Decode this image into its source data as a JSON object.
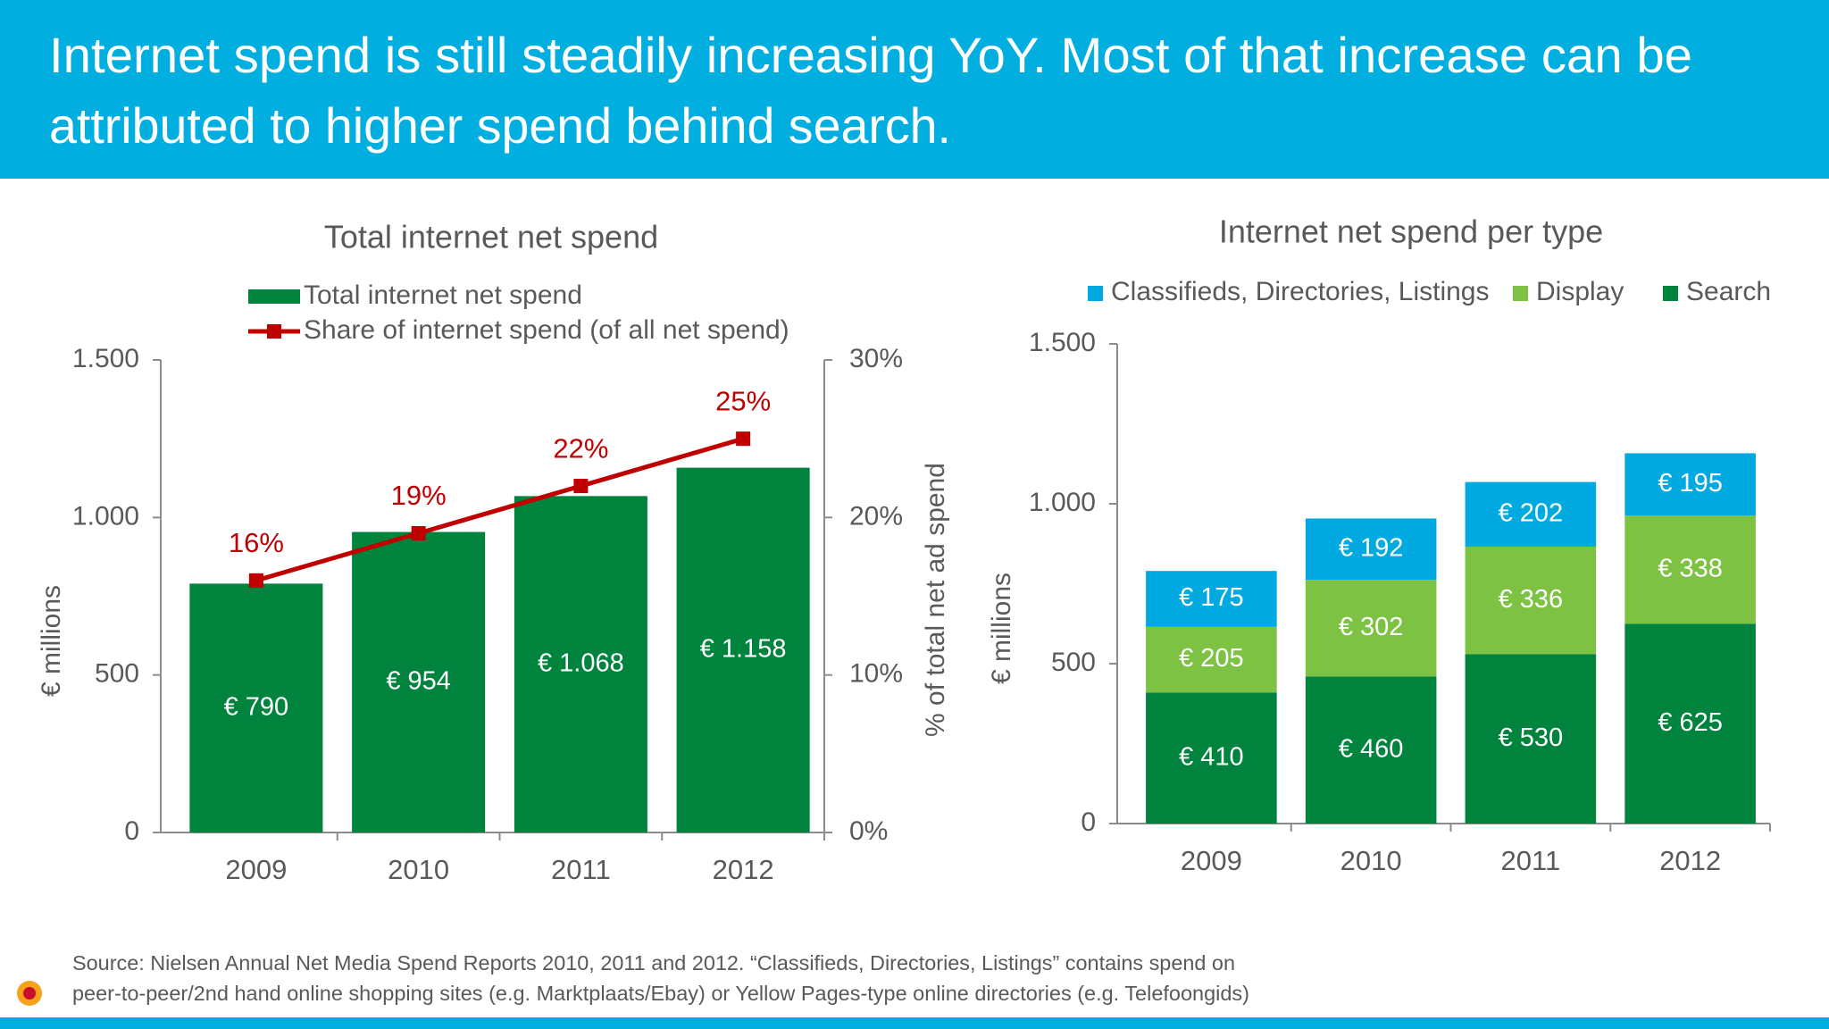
{
  "header": {
    "title": [
      "Internet spend is still steadily increasing YoY. Most of that increase can be",
      "attributed to higher spend behind search."
    ]
  },
  "chart_data": [
    {
      "type": "bar",
      "title": "Total internet net spend",
      "categories": [
        "2009",
        "2010",
        "2011",
        "2012"
      ],
      "series": [
        {
          "name": "Total internet net spend",
          "type": "bar",
          "color": "#00843d",
          "values": [
            790,
            954,
            1068,
            1158
          ],
          "value_labels": [
            "€ 790",
            "€ 954",
            "€ 1.068",
            "€ 1.158"
          ]
        },
        {
          "name": "Share of internet spend (of all net spend)",
          "type": "line",
          "axis": "y2",
          "color": "#c00000",
          "values": [
            16,
            19,
            22,
            25
          ],
          "value_labels": [
            "16%",
            "19%",
            "22%",
            "25%"
          ]
        }
      ],
      "ylabel": "€ millions",
      "y2label": "% of total net ad spend",
      "ylim": [
        0,
        1500
      ],
      "yticks": [
        0,
        500,
        {
          "value": 1000,
          "label": "1.000"
        },
        {
          "value": 1500,
          "label": "1.500"
        }
      ],
      "y2lim": [
        0,
        30
      ],
      "y2ticks": [
        {
          "value": 0,
          "label": "0%"
        },
        {
          "value": 10,
          "label": "10%"
        },
        {
          "value": 20,
          "label": "20%"
        },
        {
          "value": 30,
          "label": "30%"
        }
      ],
      "legend": "top-left",
      "grid": false
    },
    {
      "type": "stacked_bar",
      "title": "Internet net spend per type",
      "categories": [
        "2009",
        "2010",
        "2011",
        "2012"
      ],
      "series": [
        {
          "name": "Classifieds, Directories, Listings",
          "color": "#00a9e0",
          "values": [
            175,
            192,
            202,
            195
          ],
          "value_labels": [
            "€ 175",
            "€ 192",
            "€ 202",
            "€ 195"
          ]
        },
        {
          "name": "Display",
          "color": "#7dc242",
          "values": [
            205,
            302,
            336,
            338
          ],
          "value_labels": [
            "€ 205",
            "€ 302",
            "€ 336",
            "€ 338"
          ]
        },
        {
          "name": "Search",
          "color": "#00843d",
          "values": [
            410,
            460,
            530,
            625
          ],
          "value_labels": [
            "€ 410",
            "€ 460",
            "€ 530",
            "€ 625"
          ]
        }
      ],
      "ylabel": "€ millions",
      "ylim": [
        0,
        1500
      ],
      "yticks": [
        0,
        500,
        {
          "value": 1000,
          "label": "1.000"
        },
        {
          "value": 1500,
          "label": "1.500"
        }
      ],
      "legend": "top",
      "grid": false
    }
  ],
  "source": [
    "Source: Nielsen Annual Net Media Spend Reports 2010, 2011 and 2012. “Classifieds, Directories, Listings” contains spend on",
    "peer-to-peer/2nd hand online shopping sites (e.g. Marktplaats/Ebay) or Yellow Pages-type online directories (e.g. Telefoongids)"
  ]
}
